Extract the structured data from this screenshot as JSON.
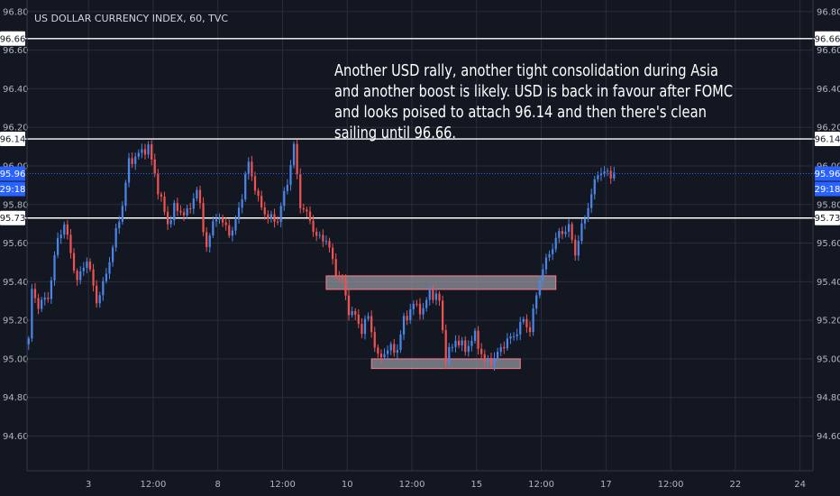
{
  "chart_data": {
    "type": "candlestick",
    "title": "US DOLLAR CURRENCY INDEX, 60, TVC",
    "ylim": [
      94.42,
      96.86
    ],
    "y_ticks": [
      "96.80",
      "96.60",
      "96.40",
      "96.20",
      "96.00",
      "95.80",
      "95.60",
      "95.40",
      "95.20",
      "95.00",
      "94.80",
      "94.60"
    ],
    "x_ticks": [
      "3",
      "12:00",
      "8",
      "12:00",
      "10",
      "12:00",
      "15",
      "12:00",
      "17",
      "12:00",
      "22",
      "24"
    ],
    "x_tick_values": [
      18.5,
      38.5,
      58.5,
      78.5,
      98.5,
      118.5,
      138.5,
      158.5,
      178.5,
      198.5,
      218.5,
      238.5
    ],
    "x_range": [
      -0.5,
      242.5
    ],
    "grid": true,
    "colors": {
      "up": "#4a86e8",
      "down": "#ef5350",
      "background": "#131722",
      "grid": "#2a2e39",
      "hline": "#ffffff",
      "last_price": "#2962ff",
      "zone_fill": "#9598a1",
      "zone_border": "#ff7a8a"
    },
    "horizontal_lines": [
      {
        "value": 96.66,
        "label": "96.66"
      },
      {
        "value": 96.14,
        "label": "96.14"
      },
      {
        "value": 95.73,
        "label": "95.73"
      }
    ],
    "last_price": {
      "value": 95.96,
      "label": "95.96",
      "countdown": "29:18"
    },
    "zones": [
      {
        "x_start": 92,
        "x_end": 163,
        "y_low": 95.36,
        "y_high": 95.43
      },
      {
        "x_start": 106,
        "x_end": 152,
        "y_low": 94.95,
        "y_high": 95.0
      }
    ],
    "annotation": {
      "lines": [
        "Another USD rally, another tight consolidation during Asia",
        "and another boost is likely. USD is back in favour after FOMC",
        "and looks poised to attach 96.14 and then there's clean",
        "sailing until 96.66."
      ]
    },
    "close_anchors": [
      [
        0,
        95.1
      ],
      [
        1,
        95.35
      ],
      [
        3,
        95.28
      ],
      [
        6,
        95.32
      ],
      [
        9,
        95.62
      ],
      [
        11,
        95.7
      ],
      [
        15,
        95.4
      ],
      [
        18,
        95.52
      ],
      [
        21,
        95.3
      ],
      [
        23,
        95.38
      ],
      [
        26,
        95.58
      ],
      [
        29,
        95.8
      ],
      [
        31,
        96.02
      ],
      [
        34,
        96.06
      ],
      [
        37,
        96.1
      ],
      [
        40,
        95.88
      ],
      [
        43,
        95.7
      ],
      [
        45,
        95.78
      ],
      [
        49,
        95.75
      ],
      [
        52,
        95.88
      ],
      [
        55,
        95.58
      ],
      [
        58,
        95.75
      ],
      [
        60,
        95.7
      ],
      [
        63,
        95.65
      ],
      [
        66,
        95.85
      ],
      [
        68,
        96.02
      ],
      [
        71,
        95.82
      ],
      [
        74,
        95.73
      ],
      [
        77,
        95.72
      ],
      [
        80,
        95.92
      ],
      [
        82,
        96.1
      ],
      [
        84,
        95.8
      ],
      [
        87,
        95.72
      ],
      [
        89,
        95.63
      ],
      [
        92,
        95.62
      ],
      [
        95,
        95.45
      ],
      [
        97,
        95.4
      ],
      [
        99,
        95.25
      ],
      [
        101,
        95.22
      ],
      [
        103,
        95.15
      ],
      [
        105,
        95.22
      ],
      [
        108,
        95.0
      ],
      [
        111,
        95.05
      ],
      [
        114,
        95.05
      ],
      [
        116,
        95.2
      ],
      [
        119,
        95.28
      ],
      [
        122,
        95.25
      ],
      [
        124,
        95.35
      ],
      [
        127,
        95.3
      ],
      [
        129,
        95.0
      ],
      [
        132,
        95.1
      ],
      [
        135,
        95.05
      ],
      [
        138,
        95.12
      ],
      [
        141,
        94.98
      ],
      [
        144,
        95.0
      ],
      [
        147,
        95.08
      ],
      [
        150,
        95.12
      ],
      [
        153,
        95.2
      ],
      [
        155,
        95.15
      ],
      [
        158,
        95.42
      ],
      [
        161,
        95.55
      ],
      [
        164,
        95.65
      ],
      [
        167,
        95.68
      ],
      [
        169,
        95.55
      ],
      [
        171,
        95.68
      ],
      [
        174,
        95.85
      ],
      [
        176,
        95.97
      ],
      [
        179,
        95.96
      ],
      [
        181,
        95.96
      ]
    ]
  }
}
